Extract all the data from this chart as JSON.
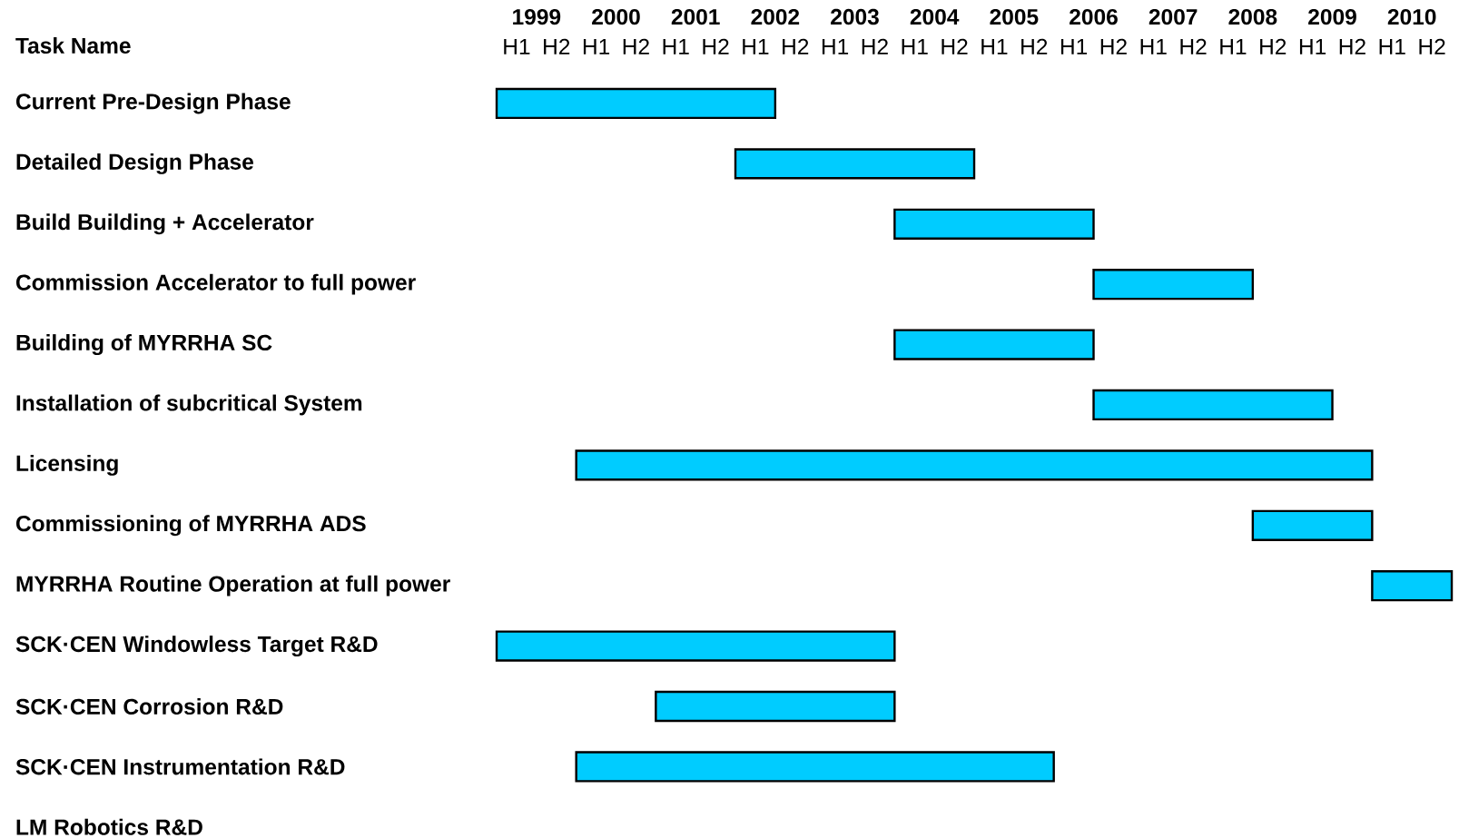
{
  "chart_data": {
    "type": "bar",
    "orientation": "horizontal",
    "ylabel": "Task Name",
    "categories": [
      "Current Pre-Design Phase",
      "Detailed Design Phase",
      "Build  Building + Accelerator",
      "Commission Accelerator to full power",
      "Building of MYRRHA SC",
      "Installation of subcritical System",
      "Licensing",
      "Commissioning of MYRRHA ADS",
      "MYRRHA Routine Operation at full power",
      "SCK·CEN Windowless Target R&D",
      "SCK·CEN Corrosion R&D",
      "SCK·CEN Instrumentation R&D",
      "LM Robotics R&D"
    ],
    "base": [
      1998.5,
      2001.5,
      2003.5,
      2006,
      2003.5,
      2006,
      1999.5,
      2008,
      2009.5,
      1998.5,
      2000.5,
      1999.5,
      null
    ],
    "values": [
      3.5,
      3,
      2.5,
      2,
      2.5,
      3,
      10,
      1.5,
      1,
      5,
      3,
      6,
      null
    ],
    "color": "#00ccff",
    "xlim": [
      1998.5,
      2010.5
    ],
    "xticks": [
      1999,
      2000,
      2001,
      2002,
      2003,
      2004,
      2005,
      2006,
      2007,
      2008,
      2009,
      2010
    ],
    "annotations": [
      "H1",
      "H2",
      "H1",
      "H2",
      "H1",
      "H2",
      "H1",
      "H2",
      "H1",
      "H2",
      "H1",
      "H2",
      "H1",
      "H2",
      "H1",
      "H2",
      "H1",
      "H2",
      "H1",
      "H2",
      "H1",
      "H2",
      "H1",
      "H2"
    ]
  }
}
